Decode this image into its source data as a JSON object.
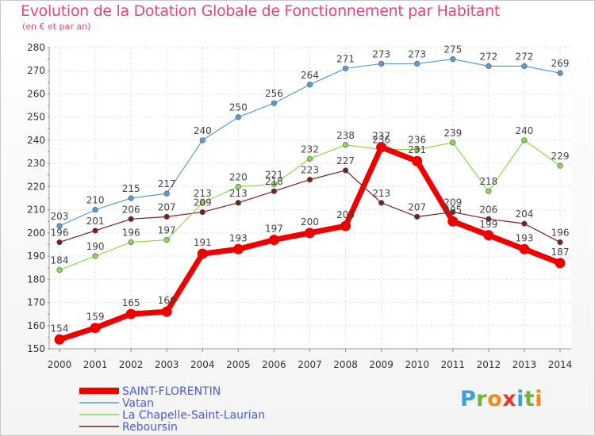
{
  "chart_data": {
    "type": "line",
    "title": "Evolution de la Dotation Globale de Fonctionnement par Habitant",
    "subtitle": "(en € et par an)",
    "x": [
      "2000",
      "2001",
      "2002",
      "2003",
      "2004",
      "2005",
      "2006",
      "2007",
      "2008",
      "2009",
      "2010",
      "2011",
      "2012",
      "2013",
      "2014"
    ],
    "ylim": [
      150,
      280
    ],
    "yticks": [
      150,
      160,
      170,
      180,
      190,
      200,
      210,
      220,
      230,
      240,
      250,
      260,
      270,
      280
    ],
    "grid": true,
    "series": [
      {
        "name": "Reboursin",
        "color": "#7a1f1f",
        "values": [
          196,
          201,
          206,
          207,
          209,
          213,
          218,
          223,
          227,
          213,
          207,
          209,
          206,
          204,
          196
        ]
      },
      {
        "name": "La Chapelle-Saint-Laurian",
        "color": "#8fd650",
        "values": [
          184,
          190,
          196,
          197,
          213,
          220,
          221,
          232,
          238,
          236,
          236,
          239,
          218,
          240,
          229
        ]
      },
      {
        "name": "Vatan",
        "color": "#5b9bd5",
        "values": [
          203,
          210,
          215,
          217,
          240,
          250,
          256,
          264,
          271,
          273,
          273,
          275,
          272,
          272,
          269
        ]
      },
      {
        "name": "SAINT-FLORENTIN",
        "color": "#ee0000",
        "values": [
          154,
          159,
          165,
          166,
          191,
          193,
          197,
          200,
          203,
          237,
          231,
          205,
          199,
          193,
          187
        ]
      }
    ]
  },
  "logo": {
    "p": "P",
    "r": "r",
    "o": "o",
    "x": "x",
    "i1": "i",
    "t": "t",
    "i2": "i"
  }
}
